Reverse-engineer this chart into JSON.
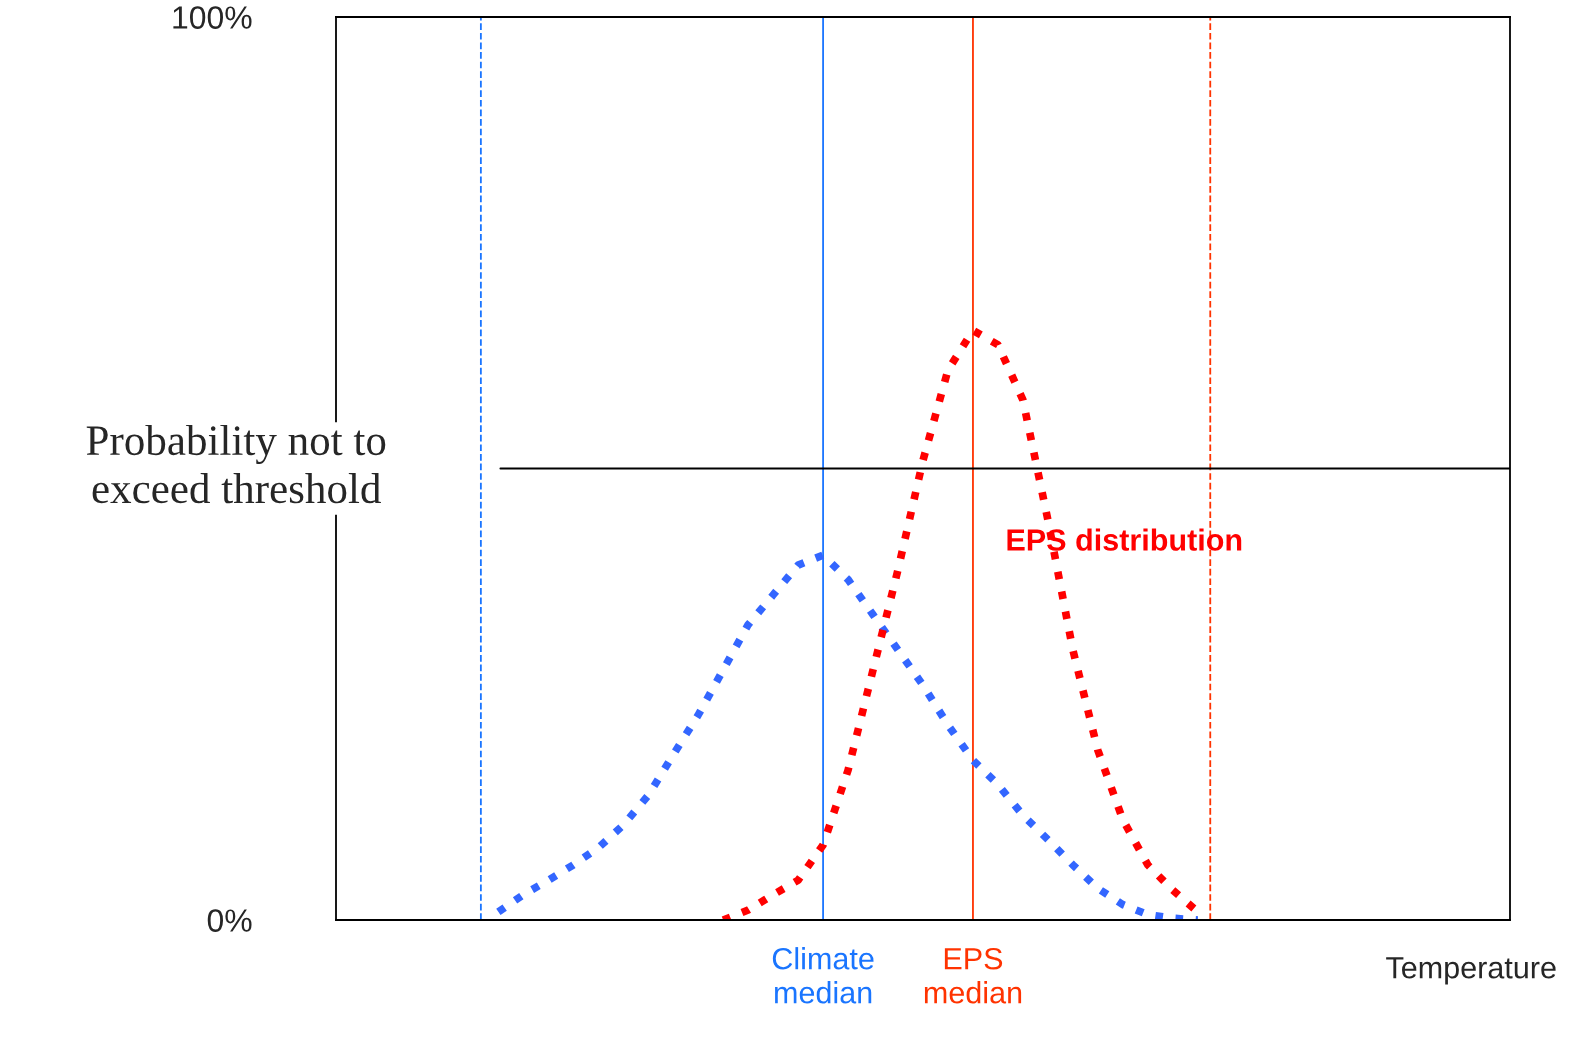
{
  "chart_data": {
    "type": "line",
    "xlabel": "Temperature",
    "ylabel": "Probability not to\nexceed threshold",
    "categories": [
      null,
      null,
      null,
      null,
      null,
      null,
      null,
      null,
      null,
      null,
      null,
      null,
      null,
      null,
      null,
      null,
      null,
      null,
      null,
      null,
      null,
      null,
      null,
      null,
      null,
      null,
      null,
      null,
      null,
      null,
      null,
      null,
      null,
      null,
      null,
      null,
      null,
      null,
      null,
      null,
      null,
      null,
      null,
      null,
      null,
      null,
      null
    ],
    "series": [
      {
        "color": "#3366ff",
        "values": [
          null,
          null,
          null,
          null,
          null,
          null,
          0.9,
          2.8,
          4.4,
          6.1,
          8.0,
          10.5,
          13.8,
          18.3,
          22.7,
          27.7,
          32.7,
          36.0,
          39.3,
          40.4,
          37.7,
          33.8,
          29.9,
          26.0,
          21.6,
          17.7,
          15.0,
          11.6,
          8.9,
          6.1,
          3.5,
          1.7,
          0.6,
          0.2,
          0,
          null,
          null,
          null,
          null,
          null,
          null,
          null,
          null,
          null,
          null,
          null,
          null
        ]
      },
      {
        "name": "EPS distribution",
        "color": "#ff0000",
        "values": [
          null,
          null,
          null,
          null,
          null,
          null,
          null,
          null,
          null,
          null,
          null,
          null,
          null,
          null,
          null,
          0,
          1.1,
          2.8,
          4.4,
          8.3,
          16.6,
          27.7,
          38.8,
          50.9,
          60.9,
          65.3,
          63.7,
          57.6,
          44.3,
          29.9,
          18.8,
          11.1,
          6.1,
          3.3,
          0.9,
          null,
          null,
          null,
          null,
          null,
          null,
          null,
          null,
          null,
          null,
          null,
          null
        ]
      }
    ],
    "ylim": [
      0,
      100
    ],
    "yticks": [
      {
        "value": 0,
        "label": "0%"
      },
      {
        "value": 100,
        "label": "100%"
      }
    ],
    "ref_lines": [
      {
        "axis": "y",
        "value": 50,
        "color": "#000000",
        "line_style": "solid"
      }
    ],
    "annotations": [
      "Climate\nmedian",
      "EPS\nmedian"
    ],
    "line_style": "dotted",
    "grid": false,
    "legend": false
  }
}
